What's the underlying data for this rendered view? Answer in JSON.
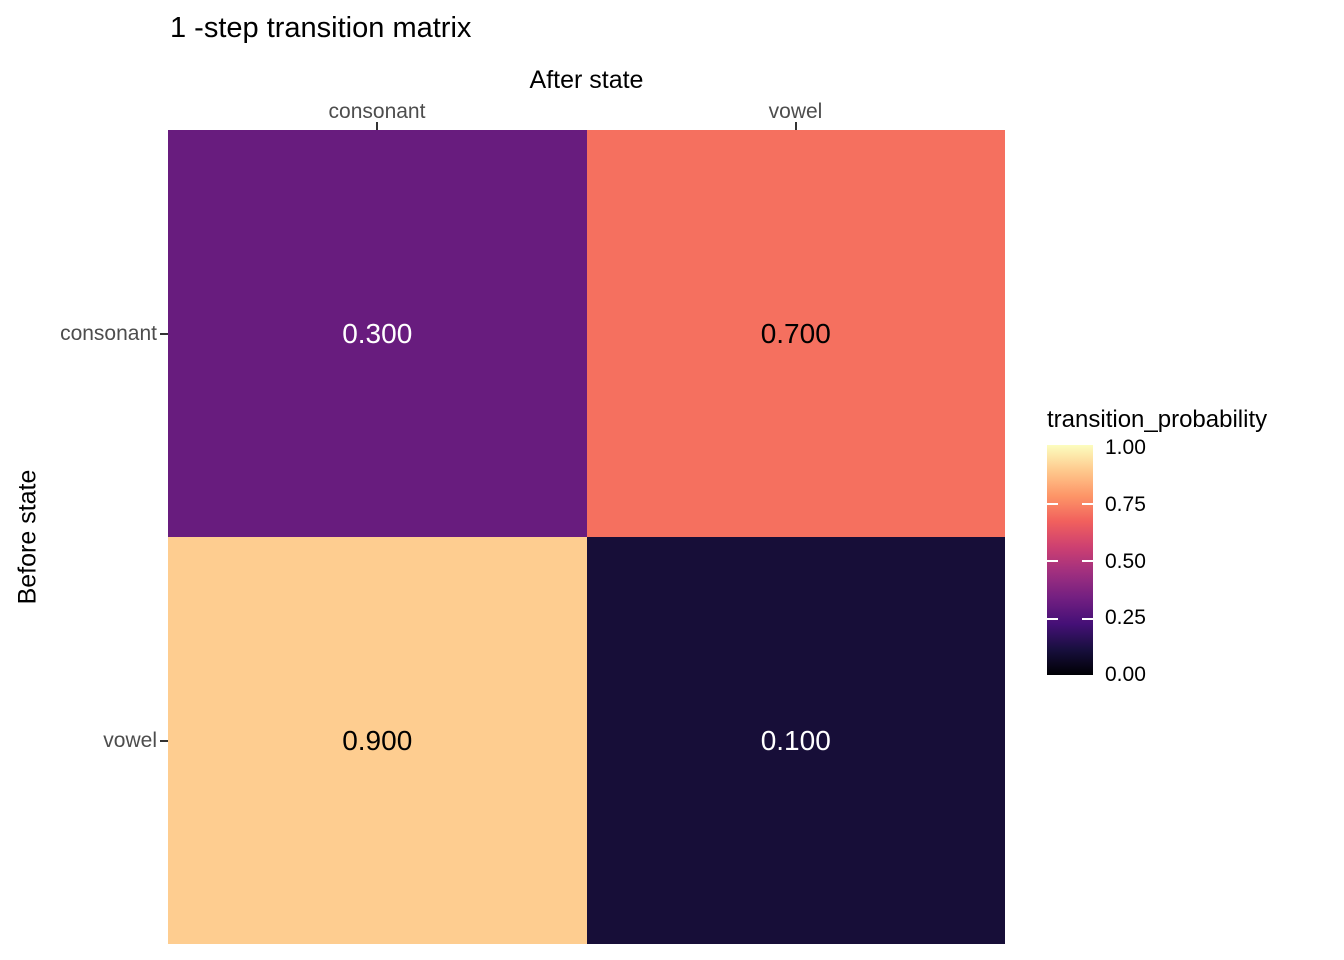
{
  "figure": {
    "title": "1 -step transition matrix",
    "background_color": "#ffffff",
    "tick_label_color": "#4d4d4d",
    "tick_mark_color": "#333333"
  },
  "chart_data": {
    "type": "heatmap",
    "title": "1 -step transition matrix",
    "x_axis": {
      "label": "After state",
      "position": "top",
      "categories": [
        "consonant",
        "vowel"
      ]
    },
    "y_axis": {
      "label": "Before state",
      "position": "left",
      "categories": [
        "consonant",
        "vowel"
      ]
    },
    "cells": [
      {
        "row": "consonant",
        "col": "consonant",
        "value": 0.3,
        "label": "0.300",
        "color": "#681c7e",
        "text_color": "#ffffff"
      },
      {
        "row": "consonant",
        "col": "vowel",
        "value": 0.7,
        "label": "0.700",
        "color": "#f5705f",
        "text_color": "#000000"
      },
      {
        "row": "vowel",
        "col": "consonant",
        "value": 0.9,
        "label": "0.900",
        "color": "#fecd90",
        "text_color": "#000000"
      },
      {
        "row": "vowel",
        "col": "vowel",
        "value": 0.1,
        "label": "0.100",
        "color": "#170e38",
        "text_color": "#ffffff"
      }
    ],
    "legend": {
      "title": "transition_probability",
      "position": "right",
      "range": [
        0.0,
        1.0
      ],
      "tick_labels": [
        "1.00",
        "0.75",
        "0.50",
        "0.25",
        "0.00"
      ],
      "colormap": "magma",
      "gradient_stops": [
        "#000004",
        "#180f3e",
        "#451077",
        "#721f81",
        "#9f2f7f",
        "#cd4071",
        "#f1605d",
        "#fd9567",
        "#fec98d",
        "#fcfdbf"
      ]
    }
  }
}
